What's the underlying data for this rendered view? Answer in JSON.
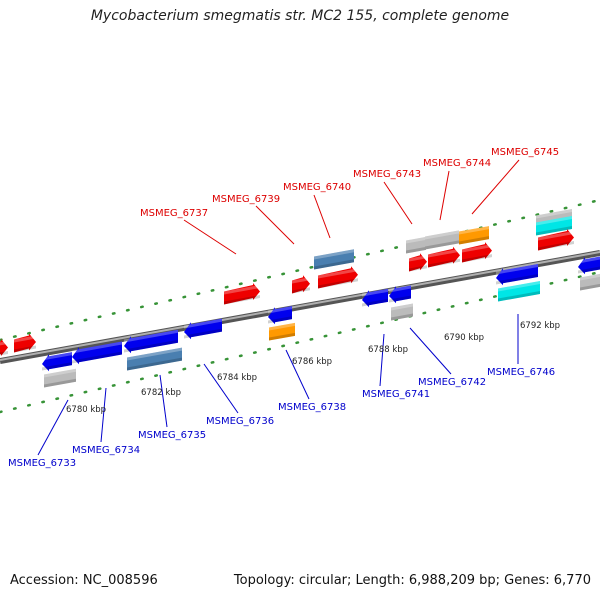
{
  "title": "Mycobacterium smegmatis str. MC2 155, complete genome",
  "footer": {
    "accession": "Accession: NC_008596",
    "summary": "Topology: circular; Length: 6,988,209 bp; Genes: 6,770"
  },
  "colors": {
    "forward_gene": "#ee0000",
    "reverse_gene": "#0000ee",
    "pseudo_gene": "#bbbbbb",
    "orange_gene": "#ff9900",
    "steel_gene": "#4a7fb0",
    "cyan_gene": "#00e6e6",
    "forward_label": "#dd0000",
    "reverse_label": "#0000cc",
    "axis": "#888888",
    "tick": "#227722"
  },
  "ticks": [
    "6780 kbp",
    "6782 kbp",
    "6784 kbp",
    "6786 kbp",
    "6788 kbp",
    "6790 kbp",
    "6792 kbp"
  ],
  "forward_labels": [
    "MSMEG_6737",
    "MSMEG_6739",
    "MSMEG_6740",
    "MSMEG_6743",
    "MSMEG_6744",
    "MSMEG_6745"
  ],
  "reverse_labels": [
    "MSMEG_6733",
    "MSMEG_6734",
    "MSMEG_6735",
    "MSMEG_6736",
    "MSMEG_6738",
    "MSMEG_6741",
    "MSMEG_6742",
    "MSMEG_6746"
  ]
}
